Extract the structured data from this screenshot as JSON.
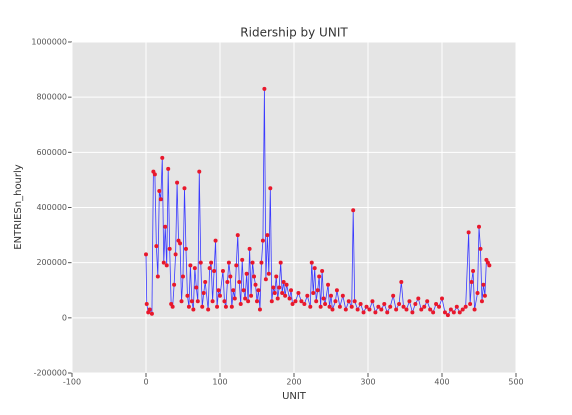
{
  "chart_data": {
    "type": "line",
    "title": "Ridership by UNIT",
    "xlabel": "UNIT",
    "ylabel": "ENTRIESn_hourly",
    "color": "#3a3aff",
    "marker_color": "#e8182c",
    "xlim": [
      -100,
      500
    ],
    "xticks": [
      -100,
      0,
      100,
      200,
      300,
      400,
      500
    ],
    "ylim": [
      -200000,
      1000000
    ],
    "yticks": [
      -200000,
      0,
      200000,
      400000,
      600000,
      800000,
      1000000
    ],
    "grid": true,
    "x": [
      0,
      1,
      3,
      5,
      8,
      10,
      12,
      14,
      16,
      18,
      20,
      22,
      24,
      26,
      28,
      30,
      32,
      34,
      36,
      38,
      40,
      42,
      44,
      46,
      48,
      50,
      52,
      54,
      56,
      58,
      60,
      62,
      64,
      66,
      68,
      70,
      72,
      74,
      76,
      78,
      80,
      84,
      86,
      88,
      90,
      92,
      94,
      96,
      98,
      100,
      104,
      106,
      108,
      110,
      112,
      114,
      116,
      118,
      120,
      122,
      124,
      126,
      128,
      130,
      132,
      134,
      136,
      138,
      140,
      142,
      144,
      146,
      148,
      150,
      152,
      154,
      156,
      158,
      160,
      162,
      164,
      166,
      168,
      170,
      172,
      174,
      176,
      178,
      180,
      182,
      184,
      186,
      188,
      190,
      194,
      196,
      198,
      202,
      206,
      210,
      214,
      218,
      222,
      224,
      226,
      228,
      230,
      232,
      234,
      236,
      238,
      240,
      242,
      246,
      248,
      250,
      252,
      256,
      258,
      262,
      266,
      270,
      274,
      278,
      280,
      282,
      286,
      290,
      294,
      298,
      302,
      306,
      310,
      314,
      318,
      322,
      326,
      330,
      334,
      338,
      342,
      345,
      348,
      352,
      356,
      360,
      364,
      368,
      372,
      376,
      380,
      384,
      388,
      392,
      396,
      400,
      404,
      408,
      412,
      416,
      420,
      424,
      428,
      432,
      436,
      438,
      440,
      442,
      444,
      448,
      450,
      452,
      454,
      456,
      458,
      460,
      462,
      464
    ],
    "values": [
      230000,
      50000,
      20000,
      30000,
      15000,
      530000,
      520000,
      260000,
      150000,
      460000,
      430000,
      580000,
      200000,
      330000,
      190000,
      540000,
      250000,
      50000,
      40000,
      120000,
      230000,
      490000,
      280000,
      270000,
      60000,
      150000,
      470000,
      250000,
      80000,
      40000,
      190000,
      60000,
      30000,
      180000,
      110000,
      60000,
      530000,
      200000,
      40000,
      90000,
      130000,
      30000,
      180000,
      200000,
      60000,
      170000,
      280000,
      40000,
      100000,
      80000,
      170000,
      60000,
      40000,
      130000,
      200000,
      150000,
      40000,
      100000,
      70000,
      190000,
      300000,
      130000,
      50000,
      210000,
      100000,
      70000,
      160000,
      60000,
      250000,
      80000,
      200000,
      150000,
      120000,
      60000,
      100000,
      30000,
      200000,
      280000,
      830000,
      140000,
      300000,
      160000,
      470000,
      60000,
      110000,
      90000,
      150000,
      70000,
      110000,
      200000,
      90000,
      130000,
      80000,
      120000,
      70000,
      100000,
      50000,
      60000,
      90000,
      60000,
      50000,
      80000,
      40000,
      200000,
      90000,
      180000,
      60000,
      100000,
      150000,
      40000,
      170000,
      70000,
      50000,
      120000,
      40000,
      80000,
      30000,
      60000,
      100000,
      40000,
      80000,
      30000,
      60000,
      40000,
      390000,
      60000,
      30000,
      50000,
      20000,
      40000,
      30000,
      60000,
      20000,
      40000,
      30000,
      50000,
      20000,
      40000,
      80000,
      30000,
      50000,
      130000,
      40000,
      30000,
      60000,
      20000,
      50000,
      70000,
      30000,
      40000,
      60000,
      30000,
      20000,
      50000,
      40000,
      70000,
      20000,
      10000,
      30000,
      20000,
      40000,
      20000,
      30000,
      40000,
      310000,
      50000,
      130000,
      170000,
      30000,
      90000,
      330000,
      250000,
      60000,
      120000,
      80000,
      210000,
      200000,
      190000
    ]
  }
}
